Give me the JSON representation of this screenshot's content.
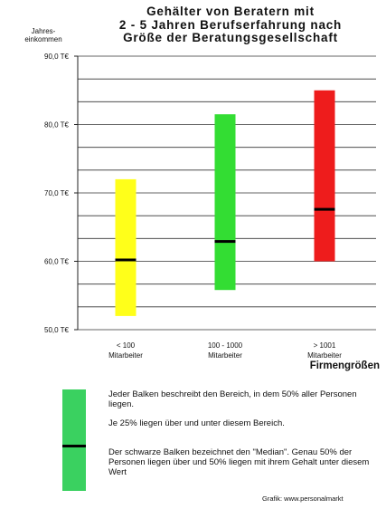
{
  "chart_data": {
    "type": "bar",
    "title_lines": [
      "Gehälter von Beratern mit",
      "2 - 5 Jahren Berufserfahrung nach",
      "Größe der Beratungsgesellschaft"
    ],
    "ylabel_lines": [
      "Jahres-",
      "einkommen"
    ],
    "xlabel": "Firmengrößen",
    "ylim": [
      50,
      90
    ],
    "yticks": [
      50,
      60,
      70,
      80,
      90
    ],
    "ytick_labels": [
      "50,0 T€",
      "60,0 T€",
      "70,0 T€",
      "80,0 T€",
      "90,0 T€"
    ],
    "grid": true,
    "categories": [
      {
        "lines": [
          "< 100",
          "Mitarbeiter"
        ],
        "low": 52.0,
        "high": 72.0,
        "median": 60.2,
        "color": "#ffff1a"
      },
      {
        "lines": [
          "100 - 1000",
          "Mitarbeiter"
        ],
        "low": 55.8,
        "high": 81.5,
        "median": 62.9,
        "color": "#33dd33"
      },
      {
        "lines": [
          "> 1001",
          "Mitarbeiter"
        ],
        "low": 60.0,
        "high": 85.0,
        "median": 67.6,
        "color": "#ee1c1c"
      }
    ]
  },
  "legend": {
    "color": "#3ad160",
    "texts": [
      "Jeder Balken beschreibt den Bereich, in dem 50% aller Personen liegen.",
      "Je 25% liegen über und unter diesem Bereich.",
      "Der schwarze Balken bezeichnet den \"Median\". Genau 50% der Personen liegen über und 50% liegen mit ihrem Gehalt unter diesem Wert"
    ]
  },
  "credit": "Grafik: www.personalmarkt"
}
